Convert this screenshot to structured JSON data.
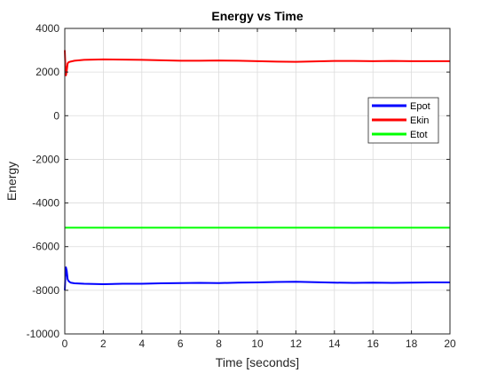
{
  "chart_data": {
    "type": "line",
    "title": "Energy vs Time",
    "xlabel": "Time [seconds]",
    "ylabel": "Energy",
    "xlim": [
      0,
      20
    ],
    "ylim": [
      -10000,
      4000
    ],
    "xticks": [
      0,
      2,
      4,
      6,
      8,
      10,
      12,
      14,
      16,
      18,
      20
    ],
    "yticks": [
      -10000,
      -8000,
      -6000,
      -4000,
      -2000,
      0,
      2000,
      4000
    ],
    "grid": true,
    "legend_position": "right",
    "series": [
      {
        "name": "Epot",
        "color": "#0000ff",
        "x": [
          0,
          0.03,
          0.06,
          0.1,
          0.15,
          0.2,
          0.3,
          0.5,
          1,
          2,
          3,
          4,
          5,
          6,
          7,
          8,
          9,
          10,
          11,
          12,
          13,
          14,
          15,
          16,
          17,
          18,
          19,
          20
        ],
        "y": [
          -8000,
          -7400,
          -6950,
          -7100,
          -7500,
          -7580,
          -7650,
          -7680,
          -7700,
          -7720,
          -7700,
          -7700,
          -7680,
          -7670,
          -7660,
          -7670,
          -7650,
          -7640,
          -7620,
          -7610,
          -7630,
          -7650,
          -7660,
          -7650,
          -7660,
          -7650,
          -7640,
          -7640
        ]
      },
      {
        "name": "Ekin",
        "color": "#ff0000",
        "x": [
          0,
          0.03,
          0.06,
          0.1,
          0.15,
          0.2,
          0.3,
          0.5,
          1,
          2,
          3,
          4,
          5,
          6,
          7,
          8,
          9,
          10,
          11,
          12,
          13,
          14,
          15,
          16,
          17,
          18,
          19,
          20
        ],
        "y": [
          3000,
          2300,
          1850,
          2050,
          2400,
          2450,
          2480,
          2520,
          2560,
          2580,
          2570,
          2560,
          2540,
          2520,
          2520,
          2530,
          2520,
          2500,
          2480,
          2470,
          2490,
          2510,
          2510,
          2500,
          2510,
          2500,
          2500,
          2500
        ]
      },
      {
        "name": "Etot",
        "color": "#00ff00",
        "x": [
          0,
          20
        ],
        "y": [
          -5130,
          -5130
        ]
      }
    ]
  }
}
